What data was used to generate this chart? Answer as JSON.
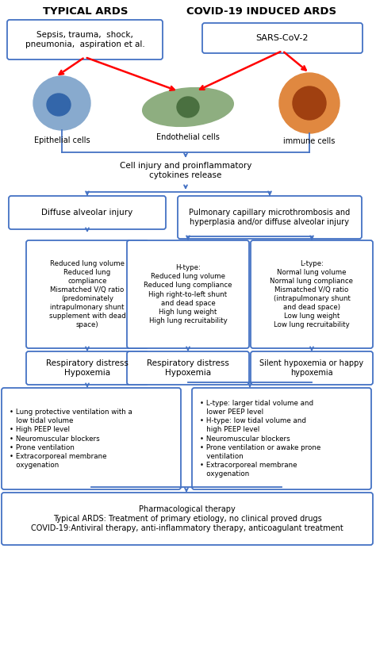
{
  "title_left": "TYPICAL ARDS",
  "title_right": "COVID-19 INDUCED ARDS",
  "box1_text": "Sepsis, trauma,  shock,\npneumonia,  aspiration et al.",
  "box2_text": "SARS-CoV-2",
  "cell1_label": "Epithelial cells",
  "cell2_label": "Endothelial cells",
  "cell3_label": "immune cells",
  "cytokines_text": "Cell injury and proinflammatory\ncytokines release",
  "box3_text": "Diffuse alveolar injury",
  "box4_text": "Pulmonary capillary microthrombosis and\nhyperplasia and/or diffuse alveolar injury",
  "box5_text": "Reduced lung volume\nReduced lung\ncompliance\nMismatched V/Q ratio\n(predominately\nintrapulmonary shunt\nsupplement with dead\nspace)",
  "box6_text": "H-type:\nReduced lung volume\nReduced lung compliance\nHigh right-to-left shunt\nand dead space\nHigh lung weight\nHigh lung recruitability",
  "box7_text": "L-type:\nNormal lung volume\nNormal lung compliance\nMismatched V/Q ratio\n(intrapulmonary shunt\nand dead space)\nLow lung weight\nLow lung recruitability",
  "box8_text": "Respiratory distress\nHypoxemia",
  "box9_text": "Respiratory distress\nHypoxemia",
  "box10_text": "Silent hypoxemia or happy\nhypoxemia",
  "box11_text": "• Lung protective ventilation with a\n   low tidal volume\n• High PEEP level\n• Neuromuscular blockers\n• Prone ventilation\n• Extracorporeal membrane\n   oxygenation",
  "box12_text": "• L-type: larger tidal volume and\n   lower PEEP level\n• H-type: low tidal volume and\n   high PEEP level\n• Neuromuscular blockers\n• Prone ventilation or awake prone\n   ventilation\n• Extracorporeal membrane\n   oxygenation",
  "box13_text": "Pharmacological therapy\nTypical ARDS: Treatment of primary etiology, no clinical proved drugs\nCOVID-19:Antiviral therapy, anti-inflammatory therapy, anticoagulant treatment",
  "blue": "#4472C4",
  "red": "#FF0000",
  "bg": "#FFFFFF",
  "cell1_outer": "#88AACE",
  "cell1_inner": "#3366AA",
  "cell2_outer": "#8EAE80",
  "cell2_inner": "#4A7040",
  "cell3_outer": "#E08840",
  "cell3_inner": "#A04010"
}
